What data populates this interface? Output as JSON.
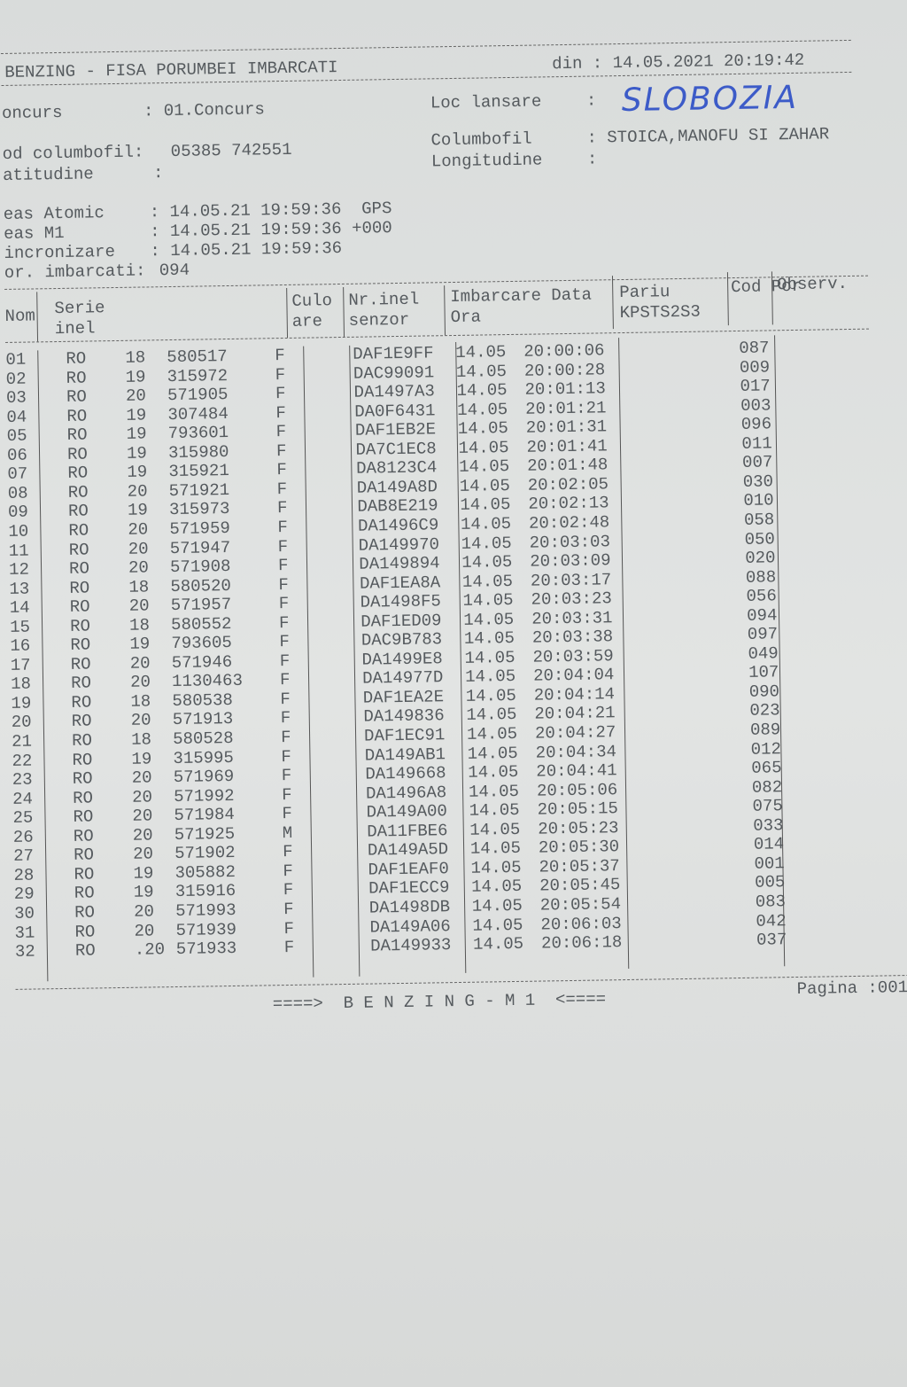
{
  "header": {
    "title": "BENZING - FISA PORUMBEI IMBARCATI",
    "date": "din : 14.05.2021 20:19:42"
  },
  "info": [
    {
      "label": "oncurs",
      "value": ": 01.Concurs"
    },
    {
      "label": "Loc lansare",
      "value": ":"
    },
    {
      "label": "od columbofil:",
      "value": "05385 742551"
    },
    {
      "label": "Columbofil",
      "value": ": STOICA,MANOFU SI ZAHAR"
    },
    {
      "label": "atitudine",
      "value": ":"
    },
    {
      "label": "Longitudine",
      "value": ":"
    },
    {
      "label": "eas Atomic",
      "value": ": 14.05.21 19:59:36  GPS"
    },
    {
      "label": "eas M1",
      "value": ": 14.05.21 19:59:36 +000"
    },
    {
      "label": "incronizare",
      "value": ": 14.05.21 19:59:36"
    },
    {
      "label": "or. imbarcati:",
      "value": "094"
    }
  ],
  "handwritten": "SLOBOZIA",
  "table": {
    "headers": [
      "Nom",
      "Serie inel",
      "Culo are",
      "Nr.inel senzor",
      "Imbarcare Data  Ora",
      "Pariu KPSTS2S3",
      "Cod Por",
      "Observ."
    ],
    "rows": [
      [
        "01",
        "RO",
        "18",
        "580517",
        "F",
        "DAF1E9FF",
        "14.05",
        "20:00:06",
        "087"
      ],
      [
        "02",
        "RO",
        "19",
        "315972",
        "F",
        "DAC99091",
        "14.05",
        "20:00:28",
        "009"
      ],
      [
        "03",
        "RO",
        "20",
        "571905",
        "F",
        "DA1497A3",
        "14.05",
        "20:01:13",
        "017"
      ],
      [
        "04",
        "RO",
        "19",
        "307484",
        "F",
        "DA0F6431",
        "14.05",
        "20:01:21",
        "003"
      ],
      [
        "05",
        "RO",
        "19",
        "793601",
        "F",
        "DAF1EB2E",
        "14.05",
        "20:01:31",
        "096"
      ],
      [
        "06",
        "RO",
        "19",
        "315980",
        "F",
        "DA7C1EC8",
        "14.05",
        "20:01:41",
        "011"
      ],
      [
        "07",
        "RO",
        "19",
        "315921",
        "F",
        "DA8123C4",
        "14.05",
        "20:01:48",
        "007"
      ],
      [
        "08",
        "RO",
        "20",
        "571921",
        "F",
        "DA149A8D",
        "14.05",
        "20:02:05",
        "030"
      ],
      [
        "09",
        "RO",
        "19",
        "315973",
        "F",
        "DAB8E219",
        "14.05",
        "20:02:13",
        "010"
      ],
      [
        "10",
        "RO",
        "20",
        "571959",
        "F",
        "DA1496C9",
        "14.05",
        "20:02:48",
        "058"
      ],
      [
        "11",
        "RO",
        "20",
        "571947",
        "F",
        "DA149970",
        "14.05",
        "20:03:03",
        "050"
      ],
      [
        "12",
        "RO",
        "20",
        "571908",
        "F",
        "DA149894",
        "14.05",
        "20:03:09",
        "020"
      ],
      [
        "13",
        "RO",
        "18",
        "580520",
        "F",
        "DAF1EA8A",
        "14.05",
        "20:03:17",
        "088"
      ],
      [
        "14",
        "RO",
        "20",
        "571957",
        "F",
        "DA1498F5",
        "14.05",
        "20:03:23",
        "056"
      ],
      [
        "15",
        "RO",
        "18",
        "580552",
        "F",
        "DAF1ED09",
        "14.05",
        "20:03:31",
        "094"
      ],
      [
        "16",
        "RO",
        "19",
        "793605",
        "F",
        "DAC9B783",
        "14.05",
        "20:03:38",
        "097"
      ],
      [
        "17",
        "RO",
        "20",
        "571946",
        "F",
        "DA1499E8",
        "14.05",
        "20:03:59",
        "049"
      ],
      [
        "18",
        "RO",
        "20",
        "1130463",
        "F",
        "DA14977D",
        "14.05",
        "20:04:04",
        "107"
      ],
      [
        "19",
        "RO",
        "18",
        "580538",
        "F",
        "DAF1EA2E",
        "14.05",
        "20:04:14",
        "090"
      ],
      [
        "20",
        "RO",
        "20",
        "571913",
        "F",
        "DA149836",
        "14.05",
        "20:04:21",
        "023"
      ],
      [
        "21",
        "RO",
        "18",
        "580528",
        "F",
        "DAF1EC91",
        "14.05",
        "20:04:27",
        "089"
      ],
      [
        "22",
        "RO",
        "19",
        "315995",
        "F",
        "DA149AB1",
        "14.05",
        "20:04:34",
        "012"
      ],
      [
        "23",
        "RO",
        "20",
        "571969",
        "F",
        "DA149668",
        "14.05",
        "20:04:41",
        "065"
      ],
      [
        "24",
        "RO",
        "20",
        "571992",
        "F",
        "DA1496A8",
        "14.05",
        "20:05:06",
        "082"
      ],
      [
        "25",
        "RO",
        "20",
        "571984",
        "F",
        "DA149A00",
        "14.05",
        "20:05:15",
        "075"
      ],
      [
        "26",
        "RO",
        "20",
        "571925",
        "M",
        "DA11FBE6",
        "14.05",
        "20:05:23",
        "033"
      ],
      [
        "27",
        "RO",
        "20",
        "571902",
        "F",
        "DA149A5D",
        "14.05",
        "20:05:30",
        "014"
      ],
      [
        "28",
        "RO",
        "19",
        "305882",
        "F",
        "DAF1EAF0",
        "14.05",
        "20:05:37",
        "001"
      ],
      [
        "29",
        "RO",
        "19",
        "315916",
        "F",
        "DAF1ECC9",
        "14.05",
        "20:05:45",
        "005"
      ],
      [
        "30",
        "RO",
        "20",
        "571993",
        "F",
        "DA1498DB",
        "14.05",
        "20:05:54",
        "083"
      ],
      [
        "31",
        "RO",
        "20",
        "571939",
        "F",
        "DA149A06",
        "14.05",
        "20:06:03",
        "042"
      ],
      [
        "32",
        "RO",
        ".20",
        "571933",
        "F",
        "DA149933",
        "14.05",
        "20:06:18",
        "037"
      ]
    ]
  },
  "footer": {
    "banner": "====>  B E N Z I N G - M 1  <====",
    "page": "Pagina :001"
  }
}
